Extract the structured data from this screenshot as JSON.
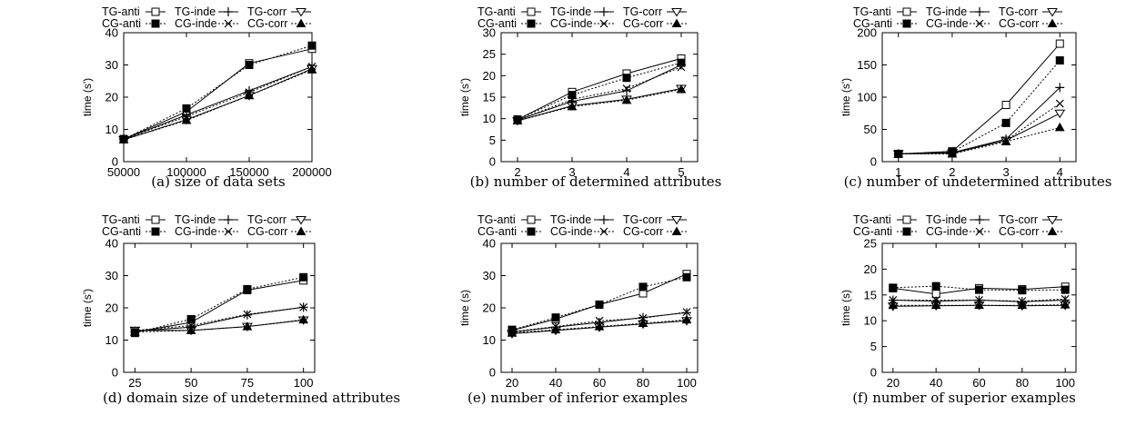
{
  "legend_labels": [
    "TG-anti",
    "TG-inde",
    "TG-corr",
    "CG-anti",
    "CG-inde",
    "CG-corr"
  ],
  "chart_data": [
    {
      "type": "line",
      "caption": "(a) size of data sets",
      "xlabel": "",
      "ylabel": "time (s')",
      "x": [
        50000,
        100000,
        150000,
        200000
      ],
      "x_ticks": [
        "50000",
        "100000",
        "150000",
        "200000"
      ],
      "xlim": [
        50000,
        200000
      ],
      "ylim": [
        0,
        40
      ],
      "y_ticks": [
        0,
        10,
        20,
        30,
        40
      ],
      "series": [
        {
          "name": "TG-anti",
          "values": [
            7,
            15.5,
            30.5,
            35
          ]
        },
        {
          "name": "TG-inde",
          "values": [
            7,
            14.5,
            22,
            29.5
          ]
        },
        {
          "name": "TG-corr",
          "values": [
            6.8,
            13,
            20.5,
            28.8
          ]
        },
        {
          "name": "CG-anti",
          "values": [
            7,
            16.5,
            30,
            36
          ]
        },
        {
          "name": "CG-inde",
          "values": [
            7,
            14,
            21.5,
            29.5
          ]
        },
        {
          "name": "CG-corr",
          "values": [
            6.8,
            12.8,
            20.5,
            28.5
          ]
        }
      ]
    },
    {
      "type": "line",
      "caption": "(b) number of determined attributes",
      "xlabel": "",
      "ylabel": "time (s')",
      "x": [
        2,
        3,
        4,
        5
      ],
      "x_ticks": [
        "2",
        "3",
        "4",
        "5"
      ],
      "xlim": [
        1.7,
        5.3
      ],
      "ylim": [
        0,
        30
      ],
      "y_ticks": [
        0,
        5,
        10,
        15,
        20,
        25,
        30
      ],
      "series": [
        {
          "name": "TG-anti",
          "values": [
            9.8,
            16.2,
            20.5,
            24
          ]
        },
        {
          "name": "TG-inde",
          "values": [
            9.7,
            14,
            16.5,
            22.5
          ]
        },
        {
          "name": "TG-corr",
          "values": [
            9.5,
            13,
            14.5,
            17
          ]
        },
        {
          "name": "CG-anti",
          "values": [
            9.8,
            15.5,
            19.5,
            23
          ]
        },
        {
          "name": "CG-inde",
          "values": [
            9.6,
            14.5,
            17,
            22
          ]
        },
        {
          "name": "CG-corr",
          "values": [
            9.5,
            12.8,
            14.3,
            16.8
          ]
        }
      ]
    },
    {
      "type": "line",
      "caption": "(c) number of undetermined attributes",
      "xlabel": "",
      "ylabel": "time (s')",
      "x": [
        1,
        2,
        3,
        4
      ],
      "x_ticks": [
        "1",
        "2",
        "3",
        "4"
      ],
      "xlim": [
        0.7,
        4.3
      ],
      "ylim": [
        0,
        200
      ],
      "y_ticks": [
        0,
        50,
        100,
        150,
        200
      ],
      "series": [
        {
          "name": "TG-anti",
          "values": [
            12,
            16,
            88,
            183
          ]
        },
        {
          "name": "TG-inde",
          "values": [
            12,
            14,
            35,
            115
          ]
        },
        {
          "name": "TG-corr",
          "values": [
            12,
            13,
            33,
            75
          ]
        },
        {
          "name": "CG-anti",
          "values": [
            12,
            15,
            60,
            157
          ]
        },
        {
          "name": "CG-inde",
          "values": [
            12,
            14,
            33,
            90
          ]
        },
        {
          "name": "CG-corr",
          "values": [
            12,
            12,
            31,
            53
          ]
        }
      ]
    },
    {
      "type": "line",
      "caption": "(d) domain size of undetermined attributes",
      "xlabel": "",
      "ylabel": "time (s')",
      "x": [
        25,
        50,
        75,
        100
      ],
      "x_ticks": [
        "25",
        "50",
        "75",
        "100"
      ],
      "xlim": [
        20,
        105
      ],
      "ylim": [
        0,
        40
      ],
      "y_ticks": [
        0,
        10,
        20,
        30,
        40
      ],
      "series": [
        {
          "name": "TG-anti",
          "values": [
            12.5,
            15.5,
            25.5,
            28.5
          ]
        },
        {
          "name": "TG-inde",
          "values": [
            12.8,
            14,
            17.8,
            20.2
          ]
        },
        {
          "name": "TG-corr",
          "values": [
            13,
            13,
            14.2,
            16.2
          ]
        },
        {
          "name": "CG-anti",
          "values": [
            12.2,
            16.5,
            25.8,
            29.5
          ]
        },
        {
          "name": "CG-inde",
          "values": [
            13,
            14.5,
            18,
            20.2
          ]
        },
        {
          "name": "CG-corr",
          "values": [
            12.5,
            13,
            14.2,
            16.3
          ]
        }
      ]
    },
    {
      "type": "line",
      "caption": "(e) number of inferior examples",
      "xlabel": "",
      "ylabel": "time (s)",
      "x": [
        20,
        40,
        60,
        80,
        100
      ],
      "x_ticks": [
        "20",
        "40",
        "60",
        "80",
        "100"
      ],
      "xlim": [
        15,
        105
      ],
      "ylim": [
        0,
        40
      ],
      "y_ticks": [
        0,
        10,
        20,
        30,
        40
      ],
      "series": [
        {
          "name": "TG-anti",
          "values": [
            13,
            16.5,
            21,
            24.5,
            30.5
          ]
        },
        {
          "name": "TG-inde",
          "values": [
            12.5,
            14,
            15.5,
            17,
            18.5
          ]
        },
        {
          "name": "TG-corr",
          "values": [
            12,
            13,
            14,
            15,
            16
          ]
        },
        {
          "name": "CG-anti",
          "values": [
            13.2,
            17,
            21,
            26.5,
            29.5
          ]
        },
        {
          "name": "CG-inde",
          "values": [
            12.6,
            14.2,
            16,
            16.8,
            18.7
          ]
        },
        {
          "name": "CG-corr",
          "values": [
            12.2,
            13.2,
            14.2,
            15.2,
            16.3
          ]
        }
      ]
    },
    {
      "type": "line",
      "caption": "(f) number of superior examples",
      "xlabel": "",
      "ylabel": "time (s)",
      "x": [
        20,
        40,
        60,
        80,
        100
      ],
      "x_ticks": [
        "20",
        "40",
        "60",
        "80",
        "100"
      ],
      "xlim": [
        15,
        105
      ],
      "ylim": [
        0,
        25
      ],
      "y_ticks": [
        0,
        5,
        10,
        15,
        20,
        25
      ],
      "series": [
        {
          "name": "TG-anti",
          "values": [
            16.3,
            15.2,
            16.3,
            16.1,
            16.6
          ]
        },
        {
          "name": "TG-inde",
          "values": [
            14,
            13.8,
            14,
            13.7,
            14
          ]
        },
        {
          "name": "TG-corr",
          "values": [
            12.8,
            12.9,
            13,
            12.9,
            13
          ]
        },
        {
          "name": "CG-anti",
          "values": [
            16.4,
            16.7,
            16,
            15.9,
            16
          ]
        },
        {
          "name": "CG-inde",
          "values": [
            14,
            14,
            14,
            13.8,
            14.2
          ]
        },
        {
          "name": "CG-corr",
          "values": [
            13,
            13,
            13,
            13,
            13.1
          ]
        }
      ]
    }
  ]
}
